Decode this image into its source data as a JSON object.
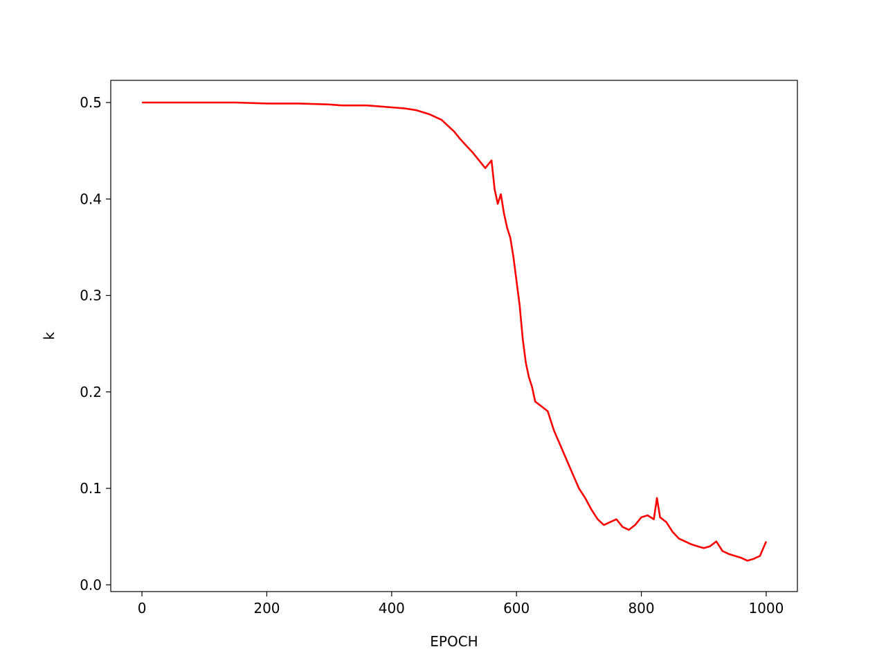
{
  "chart_data": {
    "type": "line",
    "title": "",
    "xlabel": "EPOCH",
    "ylabel": "k",
    "xlim": [
      -50,
      1050
    ],
    "ylim": [
      -0.007,
      0.523
    ],
    "grid": false,
    "legend": "none",
    "xticks": [
      0,
      200,
      400,
      600,
      800,
      1000
    ],
    "xtick_labels": [
      "0",
      "200",
      "400",
      "600",
      "800",
      "1000"
    ],
    "yticks": [
      0.0,
      0.1,
      0.2,
      0.3,
      0.4,
      0.5
    ],
    "ytick_labels": [
      "0.0",
      "0.1",
      "0.2",
      "0.3",
      "0.4",
      "0.5"
    ],
    "series": [
      {
        "color": "#ff0000",
        "x": [
          0,
          50,
          100,
          150,
          200,
          250,
          300,
          320,
          340,
          360,
          380,
          400,
          420,
          440,
          460,
          480,
          490,
          500,
          510,
          520,
          530,
          540,
          550,
          560,
          565,
          570,
          575,
          580,
          585,
          590,
          595,
          600,
          605,
          610,
          615,
          620,
          625,
          630,
          640,
          650,
          660,
          670,
          680,
          690,
          700,
          710,
          720,
          730,
          740,
          750,
          760,
          770,
          780,
          790,
          800,
          810,
          820,
          825,
          830,
          840,
          850,
          860,
          870,
          880,
          890,
          900,
          910,
          920,
          930,
          940,
          950,
          960,
          970,
          980,
          990,
          1000
        ],
        "y": [
          0.5,
          0.5,
          0.5,
          0.5,
          0.499,
          0.499,
          0.498,
          0.497,
          0.497,
          0.497,
          0.496,
          0.495,
          0.494,
          0.492,
          0.488,
          0.482,
          0.476,
          0.47,
          0.462,
          0.455,
          0.448,
          0.44,
          0.432,
          0.44,
          0.41,
          0.395,
          0.405,
          0.385,
          0.37,
          0.36,
          0.34,
          0.315,
          0.29,
          0.255,
          0.23,
          0.215,
          0.205,
          0.19,
          0.185,
          0.18,
          0.16,
          0.145,
          0.13,
          0.115,
          0.1,
          0.09,
          0.078,
          0.068,
          0.062,
          0.065,
          0.068,
          0.06,
          0.057,
          0.062,
          0.07,
          0.072,
          0.068,
          0.09,
          0.07,
          0.065,
          0.055,
          0.048,
          0.045,
          0.042,
          0.04,
          0.038,
          0.04,
          0.045,
          0.035,
          0.032,
          0.03,
          0.028,
          0.025,
          0.027,
          0.03,
          0.045
        ]
      }
    ]
  }
}
